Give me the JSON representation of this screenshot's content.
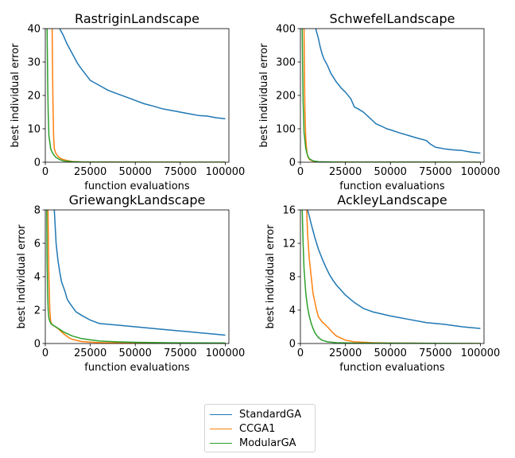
{
  "chart_data": [
    {
      "type": "line",
      "title": "RastriginLandscape",
      "xlabel": "function evaluations",
      "ylabel": "best individual error",
      "xlim": [
        0,
        102000
      ],
      "ylim": [
        0,
        40
      ],
      "xticks": [
        0,
        25000,
        50000,
        75000,
        100000
      ],
      "xtick_labels": [
        "0",
        "25000",
        "50000",
        "75000",
        "100000"
      ],
      "yticks": [
        0,
        10,
        20,
        30,
        40
      ],
      "ytick_labels": [
        "0",
        "10",
        "20",
        "30",
        "40"
      ],
      "series": [
        {
          "name": "StandardGA",
          "x": [
            8000,
            10000,
            12000,
            15000,
            18000,
            20000,
            25000,
            30000,
            35000,
            40000,
            45000,
            50000,
            55000,
            60000,
            65000,
            70000,
            75000,
            80000,
            85000,
            90000,
            95000,
            100000
          ],
          "y": [
            40,
            38,
            35.5,
            32.5,
            29.5,
            28,
            24.5,
            23,
            21.5,
            20.5,
            19.5,
            18.5,
            17.5,
            16.8,
            16,
            15.5,
            15,
            14.5,
            14,
            13.8,
            13.3,
            13
          ]
        },
        {
          "name": "CCGA1",
          "x": [
            3800,
            4200,
            4600,
            5000,
            6000,
            7000,
            8000,
            10000,
            12000,
            15000,
            20000,
            30000,
            50000,
            100000
          ],
          "y": [
            40,
            20,
            8,
            4,
            2.5,
            1.8,
            1.3,
            0.8,
            0.5,
            0.2,
            0.1,
            0.05,
            0.02,
            0
          ]
        },
        {
          "name": "ModularGA",
          "x": [
            1000,
            1300,
            1600,
            2000,
            3000,
            4000,
            5000,
            6000,
            8000,
            10000,
            15000,
            20000,
            30000,
            50000,
            100000
          ],
          "y": [
            40,
            25,
            15,
            8,
            4,
            2.8,
            2,
            1.4,
            0.8,
            0.4,
            0.15,
            0.05,
            0.02,
            0.01,
            0
          ]
        }
      ]
    },
    {
      "type": "line",
      "title": "SchwefelLandscape",
      "xlabel": "function evaluations",
      "ylabel": "best individual error",
      "xlim": [
        0,
        102000
      ],
      "ylim": [
        0,
        400
      ],
      "xticks": [
        0,
        25000,
        50000,
        75000,
        100000
      ],
      "xtick_labels": [
        "0",
        "25000",
        "50000",
        "75000",
        "100000"
      ],
      "yticks": [
        0,
        100,
        200,
        300,
        400
      ],
      "ytick_labels": [
        "0",
        "100",
        "200",
        "300",
        "400"
      ],
      "series": [
        {
          "name": "StandardGA",
          "x": [
            8500,
            10000,
            11000,
            12000,
            13000,
            15000,
            17000,
            20000,
            23000,
            25000,
            28000,
            30000,
            32000,
            35000,
            38000,
            40000,
            42000,
            45000,
            48000,
            50000,
            55000,
            60000,
            65000,
            70000,
            72000,
            75000,
            80000,
            85000,
            90000,
            95000,
            100000
          ],
          "y": [
            400,
            370,
            345,
            325,
            310,
            290,
            265,
            240,
            220,
            210,
            190,
            165,
            160,
            150,
            135,
            125,
            115,
            108,
            100,
            97,
            88,
            80,
            72,
            65,
            55,
            45,
            40,
            37,
            35,
            30,
            27
          ]
        },
        {
          "name": "CCGA1",
          "x": [
            2000,
            2200,
            2500,
            3000,
            3500,
            4000,
            5000,
            7000,
            10000,
            15000,
            30000,
            100000
          ],
          "y": [
            400,
            300,
            150,
            70,
            35,
            18,
            8,
            3,
            1,
            0.5,
            0.1,
            0
          ]
        },
        {
          "name": "ModularGA",
          "x": [
            1000,
            1200,
            1500,
            2000,
            3000,
            4000,
            5000,
            7000,
            10000,
            20000,
            100000
          ],
          "y": [
            400,
            300,
            180,
            90,
            40,
            20,
            10,
            4,
            1.5,
            0.3,
            0
          ]
        }
      ]
    },
    {
      "type": "line",
      "title": "GriewangkLandscape",
      "xlabel": "function evaluations",
      "ylabel": "best individual error",
      "xlim": [
        0,
        102000
      ],
      "ylim": [
        0,
        8
      ],
      "xticks": [
        0,
        25000,
        50000,
        75000,
        100000
      ],
      "xtick_labels": [
        "0",
        "25000",
        "50000",
        "75000",
        "100000"
      ],
      "yticks": [
        0,
        2,
        4,
        6,
        8
      ],
      "ytick_labels": [
        "0",
        "2",
        "4",
        "6",
        "8"
      ],
      "series": [
        {
          "name": "StandardGA",
          "x": [
            5000,
            5500,
            6000,
            7000,
            8000,
            9000,
            10000,
            11000,
            12000,
            13000,
            15000,
            17000,
            20000,
            25000,
            30000,
            35000,
            40000,
            50000,
            60000,
            70000,
            80000,
            90000,
            100000
          ],
          "y": [
            8,
            7,
            6,
            5,
            4.3,
            3.7,
            3.4,
            3.1,
            2.7,
            2.5,
            2.2,
            1.9,
            1.7,
            1.4,
            1.2,
            1.15,
            1.1,
            1,
            0.9,
            0.8,
            0.7,
            0.6,
            0.5
          ]
        },
        {
          "name": "CCGA1",
          "x": [
            1500,
            2000,
            2500,
            3000,
            4000,
            5000,
            7000,
            10000,
            13000,
            15000,
            20000,
            30000,
            50000,
            100000
          ],
          "y": [
            8,
            4,
            2,
            1.3,
            1.1,
            1.05,
            0.9,
            0.6,
            0.35,
            0.25,
            0.12,
            0.05,
            0.02,
            0
          ]
        },
        {
          "name": "ModularGA",
          "x": [
            800,
            1000,
            1300,
            1600,
            2000,
            3000,
            5000,
            8000,
            10000,
            15000,
            20000,
            25000,
            30000,
            40000,
            50000,
            70000,
            100000
          ],
          "y": [
            8,
            5,
            3,
            2,
            1.5,
            1.2,
            1.05,
            0.85,
            0.7,
            0.45,
            0.3,
            0.22,
            0.15,
            0.1,
            0.07,
            0.04,
            0.03
          ]
        }
      ]
    },
    {
      "type": "line",
      "title": "AckleyLandscape",
      "xlabel": "function evaluations",
      "ylabel": "best individual error",
      "xlim": [
        0,
        102000
      ],
      "ylim": [
        0,
        16
      ],
      "xticks": [
        0,
        25000,
        50000,
        75000,
        100000
      ],
      "xtick_labels": [
        "0",
        "25000",
        "50000",
        "75000",
        "100000"
      ],
      "yticks": [
        0,
        4,
        8,
        12,
        16
      ],
      "ytick_labels": [
        "0",
        "4",
        "8",
        "12",
        "16"
      ],
      "series": [
        {
          "name": "StandardGA",
          "x": [
            4000,
            5000,
            6000,
            7000,
            8000,
            9000,
            10000,
            12000,
            14000,
            16000,
            18000,
            20000,
            25000,
            30000,
            35000,
            40000,
            50000,
            60000,
            70000,
            80000,
            90000,
            100000
          ],
          "y": [
            16,
            15.2,
            14.3,
            13.5,
            12.7,
            12,
            11.3,
            10.2,
            9.2,
            8.3,
            7.6,
            7,
            5.8,
            4.9,
            4.2,
            3.8,
            3.3,
            2.9,
            2.5,
            2.3,
            2,
            1.8
          ]
        },
        {
          "name": "CCGA1",
          "x": [
            3500,
            4000,
            5000,
            6000,
            7000,
            8000,
            9000,
            10000,
            12000,
            15000,
            18000,
            20000,
            25000,
            30000,
            40000,
            50000,
            100000
          ],
          "y": [
            16,
            13,
            10,
            8,
            6,
            5,
            4,
            3.2,
            2.6,
            2,
            1.3,
            0.9,
            0.4,
            0.2,
            0.1,
            0.05,
            0
          ]
        },
        {
          "name": "ModularGA",
          "x": [
            1000,
            1500,
            2000,
            3000,
            4000,
            5000,
            6000,
            7000,
            8000,
            10000,
            12000,
            15000,
            20000,
            30000,
            100000
          ],
          "y": [
            16,
            12,
            9,
            6,
            4.3,
            3.2,
            2.4,
            1.8,
            1.3,
            0.7,
            0.4,
            0.2,
            0.1,
            0.05,
            0
          ]
        }
      ]
    }
  ],
  "legend": {
    "placement": "bottom-center",
    "entries": [
      {
        "name": "StandardGA",
        "color": "#1f77b4"
      },
      {
        "name": "CCGA1",
        "color": "#ff7f0e"
      },
      {
        "name": "ModularGA",
        "color": "#2ca02c"
      }
    ]
  },
  "colors": {
    "StandardGA": "#1f77b4",
    "CCGA1": "#ff7f0e",
    "ModularGA": "#2ca02c"
  }
}
